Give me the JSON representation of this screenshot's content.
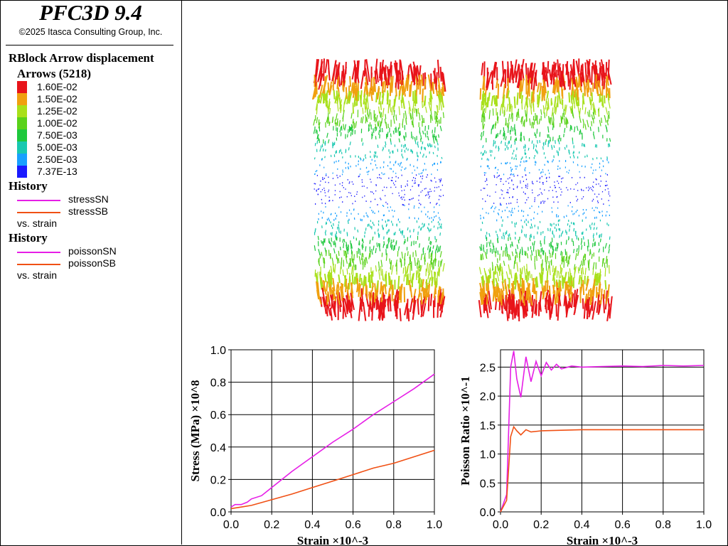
{
  "app": {
    "title": "PFC3D 9.4",
    "copyright": "©2025 Itasca Consulting Group, Inc."
  },
  "legend": {
    "plot_item": "RBlock Arrow displacement",
    "arrows_label": "Arrows (5218)",
    "color_scale": [
      {
        "label": "1.60E-02",
        "color": "#e8141a"
      },
      {
        "label": "1.50E-02",
        "color": "#f0a010"
      },
      {
        "label": "1.25E-02",
        "color": "#a8e01a"
      },
      {
        "label": "1.00E-02",
        "color": "#5ad21a"
      },
      {
        "label": "7.50E-03",
        "color": "#1ec83c"
      },
      {
        "label": "5.00E-03",
        "color": "#18c8b0"
      },
      {
        "label": "2.50E-03",
        "color": "#18a0ff"
      },
      {
        "label": "7.37E-13",
        "color": "#1a1aff"
      }
    ],
    "histories": [
      {
        "header": "History",
        "items": [
          {
            "name": "stressSN",
            "color": "#e61ee6"
          },
          {
            "name": "stressSB",
            "color": "#f05014"
          }
        ],
        "vs": "vs. strain"
      },
      {
        "header": "History",
        "items": [
          {
            "name": "poissonSN",
            "color": "#e61ee6"
          },
          {
            "name": "poissonSB",
            "color": "#f05014"
          }
        ],
        "vs": "vs. strain"
      }
    ]
  },
  "chart_data": [
    {
      "type": "line",
      "xlabel": "Strain ×10^-3",
      "ylabel": "Stress (MPa) ×10^8",
      "xlim": [
        0,
        1
      ],
      "ylim": [
        0,
        1
      ],
      "xticks": [
        "0.0",
        "0.2",
        "0.4",
        "0.6",
        "0.8",
        "1.0"
      ],
      "yticks": [
        "0.0",
        "0.2",
        "0.4",
        "0.6",
        "0.8",
        "1.0"
      ],
      "grid": true,
      "series": [
        {
          "name": "stressSN",
          "color": "#e61ee6",
          "x": [
            0,
            0.02,
            0.05,
            0.08,
            0.1,
            0.15,
            0.2,
            0.3,
            0.4,
            0.5,
            0.6,
            0.7,
            0.8,
            0.9,
            1.0
          ],
          "y": [
            0.03,
            0.045,
            0.045,
            0.06,
            0.08,
            0.1,
            0.15,
            0.25,
            0.34,
            0.43,
            0.51,
            0.6,
            0.68,
            0.76,
            0.85
          ]
        },
        {
          "name": "stressSB",
          "color": "#f05014",
          "x": [
            0,
            0.05,
            0.1,
            0.2,
            0.3,
            0.4,
            0.5,
            0.6,
            0.7,
            0.8,
            0.9,
            1.0
          ],
          "y": [
            0.02,
            0.03,
            0.04,
            0.075,
            0.11,
            0.15,
            0.19,
            0.23,
            0.27,
            0.3,
            0.34,
            0.38
          ]
        }
      ]
    },
    {
      "type": "line",
      "xlabel": "Strain ×10^-3",
      "ylabel": "Poisson Ratio ×10^-1",
      "xlim": [
        0,
        1
      ],
      "ylim": [
        0,
        2.8
      ],
      "xticks": [
        "0.0",
        "0.2",
        "0.4",
        "0.6",
        "0.8",
        "1.0"
      ],
      "yticks": [
        "0.0",
        "0.5",
        "1.0",
        "1.5",
        "2.0",
        "2.5"
      ],
      "grid": true,
      "series": [
        {
          "name": "poissonSN",
          "color": "#e61ee6",
          "x": [
            0,
            0.03,
            0.05,
            0.065,
            0.08,
            0.1,
            0.125,
            0.15,
            0.175,
            0.2,
            0.225,
            0.25,
            0.275,
            0.3,
            0.35,
            0.4,
            0.5,
            0.6,
            0.7,
            0.8,
            0.9,
            1.0
          ],
          "y": [
            0,
            0.3,
            2.5,
            2.78,
            2.3,
            1.98,
            2.68,
            2.25,
            2.6,
            2.35,
            2.58,
            2.45,
            2.55,
            2.47,
            2.52,
            2.5,
            2.51,
            2.52,
            2.51,
            2.53,
            2.52,
            2.53
          ]
        },
        {
          "name": "poissonSB",
          "color": "#f05014",
          "x": [
            0,
            0.03,
            0.05,
            0.065,
            0.08,
            0.1,
            0.125,
            0.15,
            0.2,
            0.3,
            0.4,
            0.6,
            0.8,
            1.0
          ],
          "y": [
            0,
            0.2,
            1.3,
            1.47,
            1.4,
            1.33,
            1.42,
            1.38,
            1.4,
            1.41,
            1.42,
            1.42,
            1.42,
            1.42
          ]
        }
      ]
    }
  ]
}
